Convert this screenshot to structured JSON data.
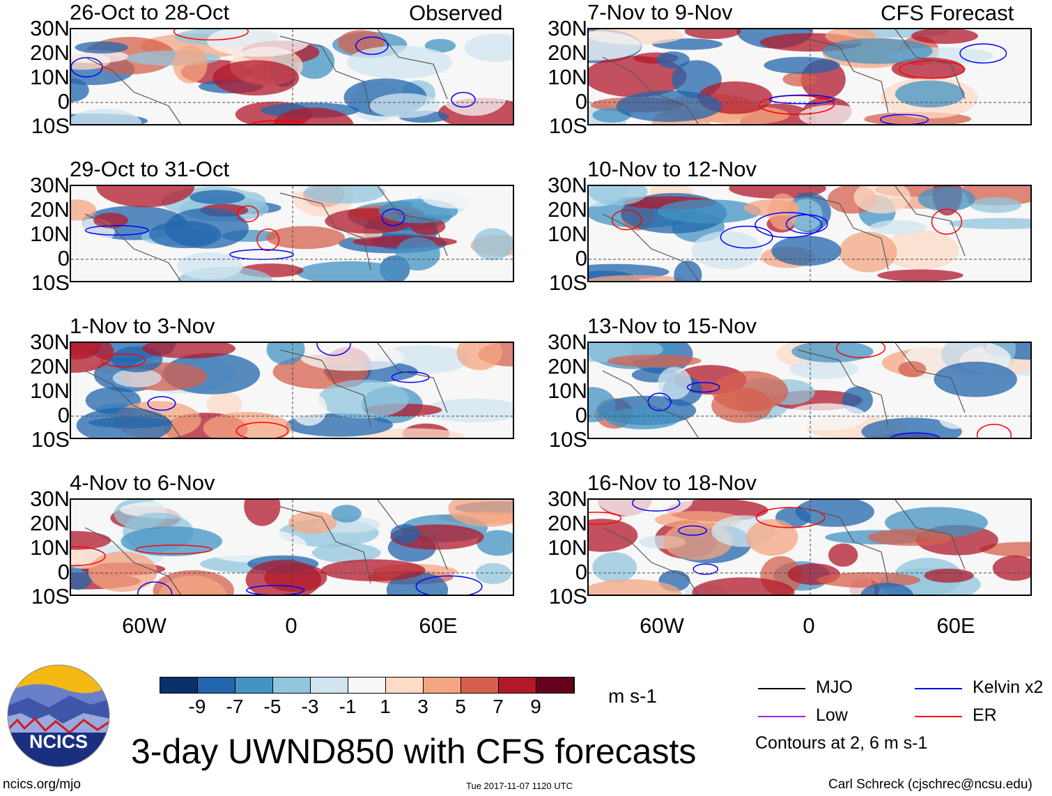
{
  "title": "3-day UWND850 with CFS forecasts",
  "left_header": "Observed",
  "right_header": "CFS Forecast",
  "panels_left": [
    "26-Oct to 28-Oct",
    "29-Oct to 31-Oct",
    "1-Nov to 3-Nov",
    "4-Nov to 6-Nov"
  ],
  "panels_right": [
    "7-Nov to 9-Nov",
    "10-Nov to 12-Nov",
    "13-Nov to 15-Nov",
    "16-Nov to 18-Nov"
  ],
  "lat_labels": [
    "30N",
    "20N",
    "10N",
    "0",
    "10S"
  ],
  "lon_labels": [
    "60W",
    "0",
    "60E"
  ],
  "colorbar": {
    "colors": [
      "#08306b",
      "#2166ac",
      "#4393c3",
      "#92c5de",
      "#d1e5f0",
      "#f7f7f7",
      "#fddbc7",
      "#f4a582",
      "#d6604d",
      "#b2182b",
      "#67001f"
    ],
    "labels": [
      "-9",
      "-7",
      "-5",
      "-3",
      "-1",
      "1",
      "3",
      "5",
      "7",
      "9"
    ],
    "units": "m s-1"
  },
  "legend": {
    "items": [
      {
        "label": "MJO",
        "color": "#000000"
      },
      {
        "label": "Kelvin x2",
        "color": "#0000ff"
      },
      {
        "label": "Low",
        "color": "#a020f0"
      },
      {
        "label": "ER",
        "color": "#ff0000"
      }
    ],
    "contours_note": "Contours at 2, 6 m s-1"
  },
  "logo_text": "NCICS",
  "footer": {
    "url": "ncics.org/mjo",
    "timestamp": "Tue 2017-11-07 1120 UTC",
    "author": "Carl Schreck (cjschrec@ncsu.edu)"
  }
}
